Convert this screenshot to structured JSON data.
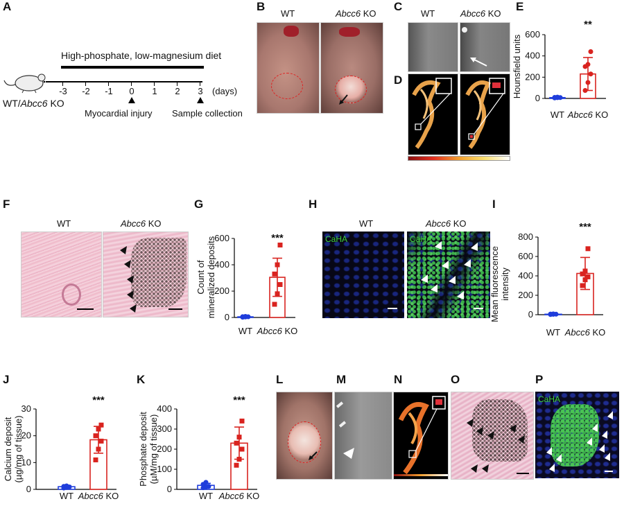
{
  "panels": {
    "A": {
      "label": "A",
      "diet": "High-phosphate, low-magnesium diet",
      "mouse_label_plain": "WT/",
      "mouse_label_italic": "Abcc6",
      "mouse_label_suffix": " KO",
      "ticks": [
        "-3",
        "-2",
        "-1",
        "0",
        "1",
        "2",
        "3"
      ],
      "units": "(days)",
      "event1": "Myocardial injury",
      "event2": "Sample collection"
    },
    "B": {
      "label": "B",
      "wt": "WT",
      "ko_italic": "Abcc6",
      "ko_suffix": " KO"
    },
    "C": {
      "label": "C",
      "wt": "WT",
      "ko_italic": "Abcc6",
      "ko_suffix": " KO"
    },
    "D": {
      "label": "D"
    },
    "E": {
      "label": "E",
      "sig": "**"
    },
    "F": {
      "label": "F",
      "wt": "WT",
      "ko_italic": "Abcc6",
      "ko_suffix": " KO"
    },
    "G": {
      "label": "G",
      "sig": "***"
    },
    "H": {
      "label": "H",
      "wt": "WT",
      "ko_italic": "Abcc6",
      "ko_suffix": " KO",
      "stain1": "CaHA",
      "stain2": "CaHA"
    },
    "I": {
      "label": "I",
      "sig": "***"
    },
    "J": {
      "label": "J",
      "sig": "***"
    },
    "K": {
      "label": "K",
      "sig": "***"
    },
    "L": {
      "label": "L"
    },
    "M": {
      "label": "M"
    },
    "N": {
      "label": "N"
    },
    "O": {
      "label": "O"
    },
    "P": {
      "label": "P",
      "stain": "CaHA"
    }
  },
  "chart_data": [
    {
      "id": "E",
      "type": "bar",
      "categories": [
        "WT",
        "Abcc6 KO"
      ],
      "values": [
        8,
        230
      ],
      "errors": [
        4,
        155
      ],
      "points": [
        [
          5,
          7,
          8,
          10,
          12
        ],
        [
          75,
          150,
          230,
          300,
          320,
          440
        ]
      ],
      "ylabel": "Hounsfield units",
      "ylim": [
        0,
        600
      ],
      "yticks": [
        "0",
        "200",
        "400",
        "600"
      ],
      "colors": [
        "#1f3ddb",
        "#d9231f"
      ],
      "markers": [
        "circle",
        "circle"
      ]
    },
    {
      "id": "G",
      "type": "bar",
      "categories": [
        "WT",
        "Abcc6 KO"
      ],
      "values": [
        5,
        305
      ],
      "errors": [
        3,
        145
      ],
      "points": [
        [
          2,
          4,
          5,
          6,
          8
        ],
        [
          100,
          180,
          250,
          330,
          400,
          550
        ]
      ],
      "ylabel": "Count of mineralized deposits",
      "ylim": [
        0,
        600
      ],
      "yticks": [
        "0",
        "200",
        "400",
        "600"
      ],
      "colors": [
        "#1f3ddb",
        "#d9231f"
      ],
      "markers": [
        "circle",
        "square"
      ]
    },
    {
      "id": "I",
      "type": "bar",
      "categories": [
        "WT",
        "Abcc6 KO"
      ],
      "values": [
        5,
        425
      ],
      "errors": [
        3,
        165
      ],
      "points": [
        [
          2,
          4,
          5,
          6,
          8
        ],
        [
          300,
          360,
          390,
          420,
          450,
          680
        ]
      ],
      "ylabel": "Mean fluorescence intensity",
      "ylim": [
        0,
        800
      ],
      "yticks": [
        "0",
        "200",
        "400",
        "600",
        "800"
      ],
      "colors": [
        "#1f3ddb",
        "#d9231f"
      ],
      "markers": [
        "circle",
        "square"
      ]
    },
    {
      "id": "J",
      "type": "bar",
      "categories": [
        "WT",
        "Abcc6 KO"
      ],
      "values": [
        1,
        18.5
      ],
      "errors": [
        0.4,
        5
      ],
      "points": [
        [
          0.5,
          0.7,
          0.9,
          1.1,
          1.3
        ],
        [
          11,
          15,
          18,
          20,
          22.5,
          24
        ]
      ],
      "ylabel": "Calcium deposit (µg/mg of tissue)",
      "ylim": [
        0,
        30
      ],
      "yticks": [
        "0",
        "10",
        "20",
        "30"
      ],
      "colors": [
        "#1f3ddb",
        "#d9231f"
      ],
      "markers": [
        "circle",
        "square"
      ]
    },
    {
      "id": "K",
      "type": "bar",
      "categories": [
        "WT",
        "Abcc6 KO"
      ],
      "values": [
        20,
        230
      ],
      "errors": [
        10,
        80
      ],
      "points": [
        [
          8,
          12,
          15,
          25,
          35
        ],
        [
          120,
          150,
          200,
          230,
          260,
          340
        ]
      ],
      "ylabel": "Phosphate deposit (µM/mg of tissue)",
      "ylim": [
        0,
        400
      ],
      "yticks": [
        "0",
        "100",
        "200",
        "300",
        "400"
      ],
      "colors": [
        "#1f3ddb",
        "#d9231f"
      ],
      "markers": [
        "circle",
        "square"
      ]
    }
  ]
}
